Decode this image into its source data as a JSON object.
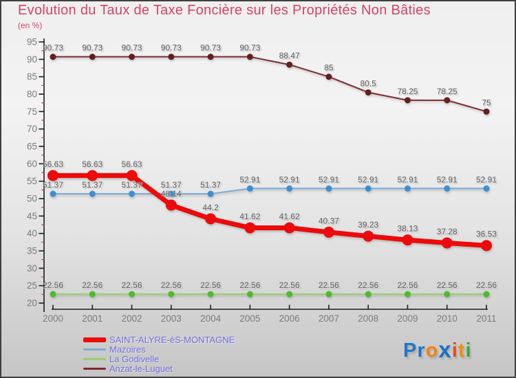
{
  "header": {
    "title": "Evolution du Taux de Taxe Foncière sur les Propriétés Non Bâties",
    "subtitle": "(en %)"
  },
  "chart_data": {
    "type": "line",
    "title": "Evolution du Taux de Taxe Foncière sur les Propriétés Non Bâties",
    "subtitle": "(en %)",
    "x": [
      2000,
      2001,
      2002,
      2003,
      2004,
      2005,
      2006,
      2007,
      2008,
      2009,
      2010,
      2011
    ],
    "ylim": [
      20,
      95
    ],
    "yticks": [
      20,
      25,
      30,
      35,
      40,
      45,
      50,
      55,
      60,
      65,
      70,
      75,
      80,
      85,
      90,
      95
    ],
    "ytick_minor_step": 2.5,
    "grid": false,
    "legend_position": "bottom-left",
    "axis_color": "#1c1c1c",
    "minor_tick_color": "#c03030",
    "tick_label_color": "#7b7b7b",
    "data_label_color": "#616161",
    "series": [
      {
        "name": "SAINT-ALYRE-èS-MONTAGNE",
        "line_color": "#ec0a0a",
        "marker_color": "#ec0a0a",
        "line_width": 7,
        "marker_radius": 8,
        "z": 4,
        "values": [
          56.63,
          56.63,
          56.63,
          48.14,
          44.2,
          41.62,
          41.62,
          40.37,
          39.23,
          38.13,
          37.28,
          36.53
        ]
      },
      {
        "name": "Mazoires",
        "line_color": "#7babd6",
        "marker_color": "#3d8fd0",
        "line_width": 2,
        "marker_radius": 4.5,
        "z": 2,
        "values": [
          51.37,
          51.37,
          51.37,
          51.37,
          51.37,
          52.91,
          52.91,
          52.91,
          52.91,
          52.91,
          52.91,
          52.91
        ]
      },
      {
        "name": "La Godivelle",
        "line_color": "#97d06b",
        "marker_color": "#4cbb2f",
        "line_width": 2,
        "marker_radius": 4.5,
        "z": 3,
        "values": [
          22.56,
          22.56,
          22.56,
          22.56,
          22.56,
          22.56,
          22.56,
          22.56,
          22.56,
          22.56,
          22.56,
          22.56
        ]
      },
      {
        "name": "Anzat-le-Luguet",
        "line_color": "#7c2d2d",
        "marker_color": "#641f1f",
        "line_width": 2,
        "marker_radius": 4.5,
        "z": 1,
        "values": [
          90.73,
          90.73,
          90.73,
          90.73,
          90.73,
          90.73,
          88.47,
          85,
          80.5,
          78.25,
          78.25,
          75
        ]
      }
    ]
  },
  "legend_text_color": "#6f6fe0",
  "logo": {
    "letters": [
      {
        "ch": "P",
        "color": "#2277c4",
        "big": false
      },
      {
        "ch": "r",
        "color": "#2277c4",
        "big": false
      },
      {
        "ch": "o",
        "color": "#f5820b",
        "big": false
      },
      {
        "ch": "x",
        "color": "#1d6fc4",
        "big": true
      },
      {
        "ch": "i",
        "color": "#e8491c",
        "big": false
      },
      {
        "ch": "t",
        "color": "#f08c12",
        "big": false
      },
      {
        "ch": "i",
        "color": "#3ba43b",
        "big": false
      }
    ]
  }
}
